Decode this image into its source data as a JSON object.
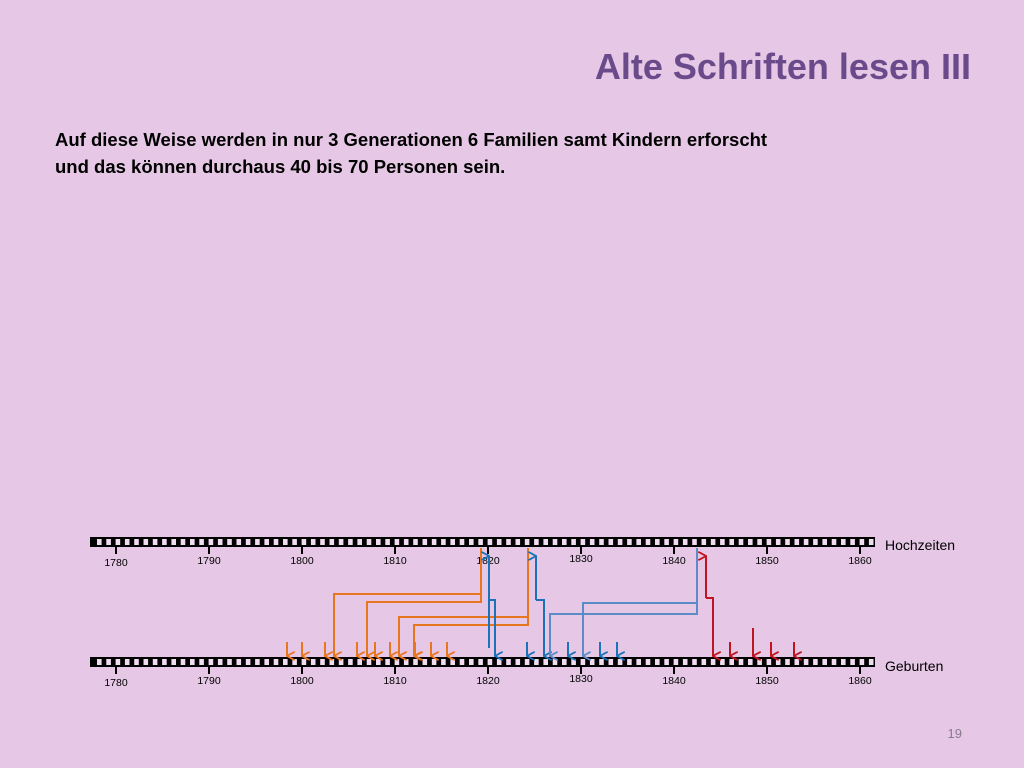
{
  "title": "Alte Schriften lesen III",
  "body_lines": [
    "Auf diese Weise werden in nur 3 Generationen 6 Familien samt Kindern erforscht",
    "und das können durchaus 40 bis 70 Personen sein."
  ],
  "timeline": {
    "tick_labels": [
      "1780",
      "1790",
      "1800",
      "1810",
      "1820",
      "1830",
      "1840",
      "1850",
      "1860"
    ],
    "upper_label": "Hochzeiten",
    "lower_label": "Geburten"
  },
  "colors": {
    "background": "#e6c8e6",
    "title": "#6a4a8a",
    "orange": "#e8761e",
    "blue": "#1a72b8",
    "light_blue": "#5c8cc8",
    "red": "#c0141e"
  },
  "page_number": "19"
}
